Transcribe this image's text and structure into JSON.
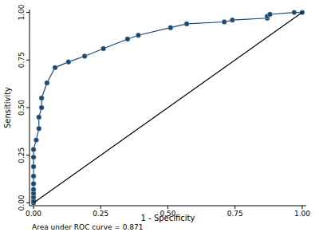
{
  "chart_data": {
    "type": "line",
    "x_label": "1 - Specificity",
    "y_label": "Sensitivity",
    "annotations": [
      "Area under ROC curve = 0.871"
    ],
    "xlim": [
      -0.015,
      1.015
    ],
    "ylim": [
      -0.015,
      1.015
    ],
    "xticks": [
      {
        "value": 0,
        "label": "0.00"
      },
      {
        "value": 0.25,
        "label": "0.25"
      },
      {
        "value": 0.5,
        "label": "0.50"
      },
      {
        "value": 0.75,
        "label": "0.75"
      },
      {
        "value": 1,
        "label": "1.00"
      }
    ],
    "yticks": [
      {
        "value": 0,
        "label": "0.00"
      },
      {
        "value": 0.25,
        "label": "0.25"
      },
      {
        "value": 0.5,
        "label": "0.50"
      },
      {
        "value": 0.75,
        "label": "0.75"
      },
      {
        "value": 1,
        "label": "1.00"
      }
    ],
    "grid": false,
    "series": [
      {
        "color": "#1a476f",
        "marker": "circle",
        "line_style": "solid",
        "x": [
          0,
          0,
          0,
          0,
          0,
          0,
          0,
          0,
          0,
          0,
          0.01,
          0.02,
          0.02,
          0.03,
          0.03,
          0.05,
          0.08,
          0.13,
          0.19,
          0.26,
          0.35,
          0.39,
          0.51,
          0.57,
          0.71,
          0.74,
          0.87,
          0.87,
          0.88,
          0.97,
          1
        ],
        "values": [
          0,
          0.01,
          0.03,
          0.05,
          0.07,
          0.1,
          0.14,
          0.19,
          0.24,
          0.28,
          0.33,
          0.39,
          0.45,
          0.5,
          0.55,
          0.63,
          0.71,
          0.74,
          0.77,
          0.81,
          0.86,
          0.88,
          0.92,
          0.94,
          0.95,
          0.96,
          0.97,
          0.98,
          0.99,
          1,
          1
        ]
      },
      {
        "color": "#000000",
        "marker": "none",
        "line_style": "solid",
        "x": [
          0,
          1
        ],
        "values": [
          0,
          1
        ]
      }
    ]
  }
}
